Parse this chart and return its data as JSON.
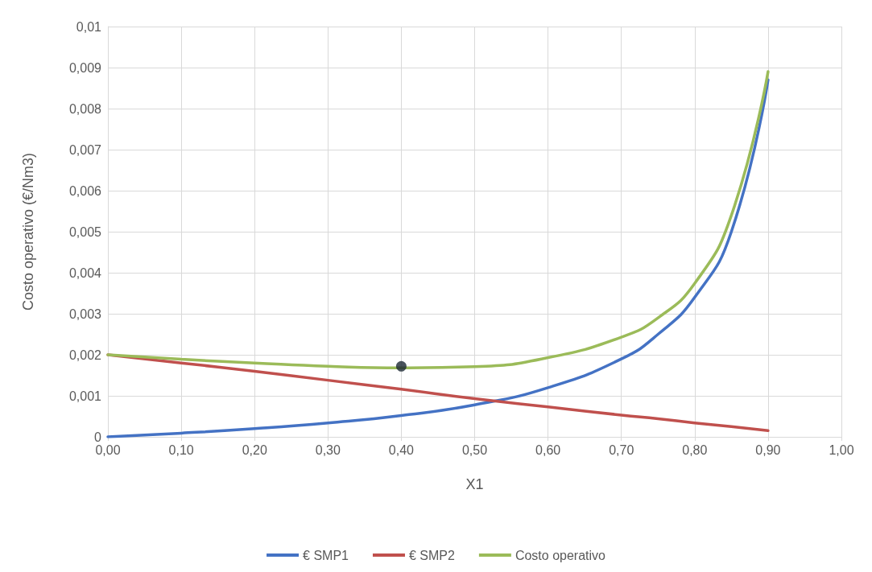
{
  "chart_data": {
    "type": "line",
    "xlabel": "X1",
    "ylabel": "Costo operativo (€/Nm3)",
    "x": [
      0,
      0.1,
      0.2,
      0.3,
      0.4,
      0.5,
      0.6,
      0.7,
      0.75,
      0.8,
      0.85,
      0.9
    ],
    "series": [
      {
        "name": "€ SMP1",
        "color": "#4472c4",
        "values": [
          0,
          9e-05,
          0.0002,
          0.00034,
          0.00052,
          0.00078,
          0.0012,
          0.0019,
          0.0025,
          0.0034,
          0.005,
          0.0087
        ]
      },
      {
        "name": "€ SMP2",
        "color": "#c0504d",
        "values": [
          0.002,
          0.0018,
          0.0016,
          0.00138,
          0.00116,
          0.00093,
          0.00073,
          0.00053,
          0.00044,
          0.00034,
          0.00025,
          0.00015
        ]
      },
      {
        "name": "Costo operativo",
        "color": "#9bbb59",
        "values": [
          0.002,
          0.00189,
          0.0018,
          0.00172,
          0.00168,
          0.00171,
          0.00193,
          0.00243,
          0.0029,
          0.00374,
          0.0054,
          0.0089
        ]
      },
      {
        "type": "scatter",
        "marker": "circle",
        "color": "#1c2833",
        "x": [
          0.4
        ],
        "values": [
          0.00172
        ]
      }
    ],
    "xlim": [
      0,
      1
    ],
    "xticks": [
      {
        "value": 0,
        "label": "0,00"
      },
      {
        "value": 0.1,
        "label": "0,10"
      },
      {
        "value": 0.2,
        "label": "0,20"
      },
      {
        "value": 0.3,
        "label": "0,30"
      },
      {
        "value": 0.4,
        "label": "0,40"
      },
      {
        "value": 0.5,
        "label": "0,50"
      },
      {
        "value": 0.6,
        "label": "0,60"
      },
      {
        "value": 0.7,
        "label": "0,70"
      },
      {
        "value": 0.8,
        "label": "0,80"
      },
      {
        "value": 0.9,
        "label": "0,90"
      },
      {
        "value": 1,
        "label": "1,00"
      }
    ],
    "ylim": [
      0,
      0.01
    ],
    "yticks": [
      0,
      {
        "value": 0.001,
        "label": "0,001"
      },
      {
        "value": 0.002,
        "label": "0,002"
      },
      {
        "value": 0.003,
        "label": "0,003"
      },
      {
        "value": 0.004,
        "label": "0,004"
      },
      {
        "value": 0.005,
        "label": "0,005"
      },
      {
        "value": 0.006,
        "label": "0,006"
      },
      {
        "value": 0.007,
        "label": "0,007"
      },
      {
        "value": 0.008,
        "label": "0,008"
      },
      {
        "value": 0.009,
        "label": "0,009"
      },
      {
        "value": 0.01,
        "label": "0,01"
      }
    ],
    "grid": true,
    "legend": "bottom",
    "marker": "none",
    "line_style": "solid"
  }
}
